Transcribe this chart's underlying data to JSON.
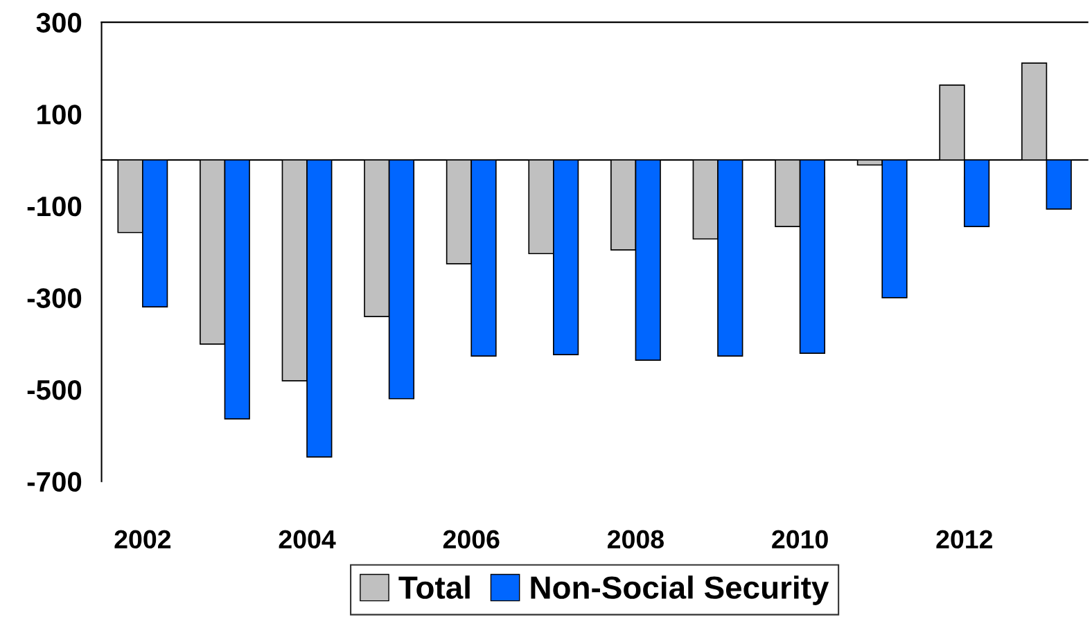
{
  "chart_data": {
    "type": "bar",
    "categories": [
      "2002",
      null,
      "2004",
      null,
      "2006",
      null,
      "2008",
      null,
      "2010",
      null,
      "2012",
      null
    ],
    "series": [
      {
        "name": "Total",
        "color": "#c0c0c0",
        "values": [
          -158,
          -401,
          -481,
          -341,
          -226,
          -204,
          -196,
          -172,
          -145,
          -11,
          163,
          211
        ]
      },
      {
        "name": "Non-Social Security",
        "color": "#0066ff",
        "values": [
          -320,
          -564,
          -647,
          -520,
          -427,
          -424,
          -436,
          -427,
          -421,
          -300,
          -145,
          -107
        ]
      }
    ],
    "ylim": [
      -700,
      300
    ],
    "yticks": [
      -700,
      -500,
      -300,
      -100,
      100,
      300
    ],
    "grid": false,
    "legend": "bottom"
  }
}
